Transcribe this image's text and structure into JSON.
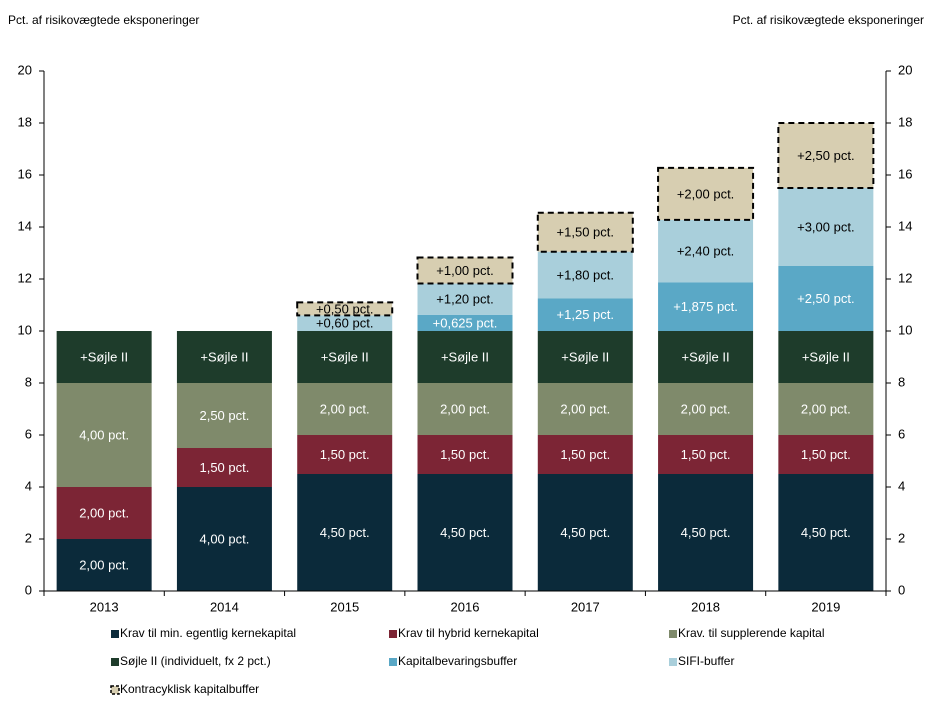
{
  "chart_data": {
    "type": "stacked_bar",
    "y_label": "Pct. af risikovægtede eksponeringer",
    "y2_label": "Pct. af risikovægtede eksponeringer",
    "categories": [
      "2013",
      "2014",
      "2015",
      "2016",
      "2017",
      "2018",
      "2019"
    ],
    "ylim": [
      0,
      20
    ],
    "yticks": [
      0,
      2,
      4,
      6,
      8,
      10,
      12,
      14,
      16,
      18,
      20
    ],
    "y2lim": [
      0,
      20
    ],
    "y2ticks": [
      0,
      2,
      4,
      6,
      8,
      10,
      12,
      14,
      16,
      18,
      20
    ],
    "series": [
      {
        "name": "Krav til min. egentlig kernekapital",
        "color": "#0b2a3a",
        "values": [
          2,
          4,
          4.5,
          4.5,
          4.5,
          4.5,
          4.5
        ],
        "value_labels": [
          "2,00 pct.",
          "4,00 pct.",
          "4,50 pct.",
          "4,50 pct.",
          "4,50 pct.",
          "4,50 pct.",
          "4,50 pct."
        ]
      },
      {
        "name": "Krav til hybrid kernekapital",
        "color": "#7c2535",
        "values": [
          2,
          1.5,
          1.5,
          1.5,
          1.5,
          1.5,
          1.5
        ],
        "value_labels": [
          "2,00 pct.",
          "1,50 pct.",
          "1,50 pct.",
          "1,50 pct.",
          "1,50 pct.",
          "1,50 pct.",
          "1,50 pct."
        ]
      },
      {
        "name": "Krav. til supplerende kapital",
        "color": "#7f8a6b",
        "values": [
          4,
          2.5,
          2,
          2,
          2,
          2,
          2
        ],
        "value_labels": [
          "4,00 pct.",
          "2,50 pct.",
          "2,00 pct.",
          "2,00 pct.",
          "2,00 pct.",
          "2,00 pct.",
          "2,00 pct."
        ]
      },
      {
        "name": "Søjle II (individuelt, fx 2 pct.)",
        "color": "#1e3c2b",
        "values": [
          2,
          2,
          2,
          2,
          2,
          2,
          2
        ],
        "value_labels": [
          "+Søjle II",
          "+Søjle II",
          "+Søjle II",
          "+Søjle II",
          "+Søjle II",
          "+Søjle II",
          "+Søjle II"
        ]
      },
      {
        "name": "Kapitalbevaringsbuffer",
        "color": "#5aa8c6",
        "values": [
          null,
          null,
          null,
          0.625,
          1.25,
          1.875,
          2.5
        ],
        "value_labels": [
          null,
          null,
          null,
          "+0,625 pct.",
          "+1,25 pct.",
          "+1,875 pct.",
          "+2,50 pct."
        ]
      },
      {
        "name": "SIFI-buffer",
        "color": "#a9cfdb",
        "values": [
          null,
          null,
          0.6,
          1.2,
          1.8,
          2.4,
          3.0
        ],
        "value_labels": [
          null,
          null,
          "+0,60 pct.",
          "+1,20 pct.",
          "+1,80 pct.",
          "+2,40 pct.",
          "+3,00 pct."
        ]
      },
      {
        "name": "Kontracyklisk kapitalbuffer",
        "color": "#d7ceb1",
        "style": "dashed",
        "values": [
          null,
          null,
          0.5,
          1.0,
          1.5,
          2.0,
          2.5
        ],
        "value_labels": [
          null,
          null,
          "+0,50 pct.",
          "+1,00 pct.",
          "+1,50 pct.",
          "+2,00 pct.",
          "+2,50 pct."
        ]
      }
    ]
  }
}
